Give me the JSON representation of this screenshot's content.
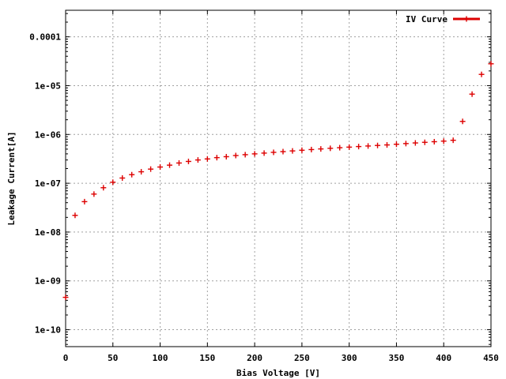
{
  "chart_data": {
    "type": "scatter",
    "title": "",
    "xlabel": "Bias Voltage [V]",
    "ylabel": "Leakage Current[A]",
    "xlim": [
      0,
      450
    ],
    "ylim": [
      4.5e-11,
      0.00035
    ],
    "yscale": "log",
    "grid": true,
    "legend_position": "top-right",
    "color": "#dd0000",
    "x_ticks": [
      {
        "value": 0,
        "label": "0"
      },
      {
        "value": 50,
        "label": "50"
      },
      {
        "value": 100,
        "label": "100"
      },
      {
        "value": 150,
        "label": "150"
      },
      {
        "value": 200,
        "label": "200"
      },
      {
        "value": 250,
        "label": "250"
      },
      {
        "value": 300,
        "label": "300"
      },
      {
        "value": 350,
        "label": "350"
      },
      {
        "value": 400,
        "label": "400"
      },
      {
        "value": 450,
        "label": "450"
      }
    ],
    "y_ticks": [
      {
        "value": 1e-10,
        "label": "1e-10"
      },
      {
        "value": 1e-09,
        "label": "1e-09"
      },
      {
        "value": 1e-08,
        "label": "1e-08"
      },
      {
        "value": 1e-07,
        "label": "1e-07"
      },
      {
        "value": 1e-06,
        "label": "1e-06"
      },
      {
        "value": 1e-05,
        "label": "1e-05"
      },
      {
        "value": 0.0001,
        "label": "0.0001"
      }
    ],
    "series": [
      {
        "name": "IV Curve",
        "x": [
          0,
          10,
          20,
          30,
          40,
          50,
          60,
          70,
          80,
          90,
          100,
          110,
          120,
          130,
          140,
          150,
          160,
          170,
          180,
          190,
          200,
          210,
          220,
          230,
          240,
          250,
          260,
          270,
          280,
          290,
          300,
          310,
          320,
          330,
          340,
          350,
          360,
          370,
          380,
          390,
          400,
          410,
          420,
          430,
          440,
          450
        ],
        "y": [
          4.6e-10,
          2.2e-08,
          4.2e-08,
          6e-08,
          8.1e-08,
          1.05e-07,
          1.28e-07,
          1.5e-07,
          1.72e-07,
          1.95e-07,
          2.15e-07,
          2.35e-07,
          2.6e-07,
          2.8e-07,
          3e-07,
          3.15e-07,
          3.35e-07,
          3.5e-07,
          3.7e-07,
          3.85e-07,
          4e-07,
          4.15e-07,
          4.3e-07,
          4.45e-07,
          4.6e-07,
          4.75e-07,
          4.9e-07,
          5.05e-07,
          5.2e-07,
          5.35e-07,
          5.5e-07,
          5.65e-07,
          5.8e-07,
          5.95e-07,
          6.1e-07,
          6.3e-07,
          6.5e-07,
          6.7e-07,
          6.9e-07,
          7.1e-07,
          7.3e-07,
          7.6e-07,
          1.85e-06,
          6.7e-06,
          1.7e-05,
          2.8e-05
        ]
      }
    ]
  }
}
